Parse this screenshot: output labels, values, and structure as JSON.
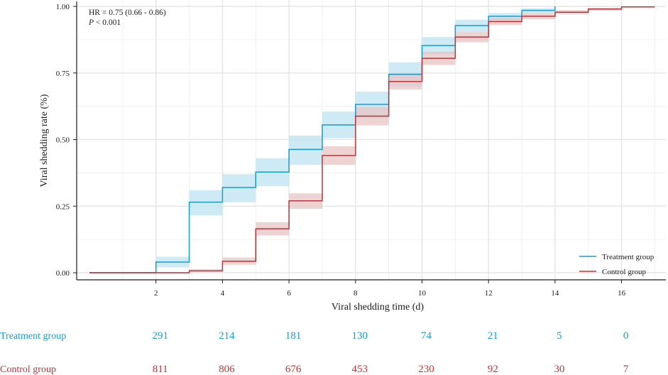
{
  "chart_data": {
    "type": "line",
    "subtype": "step-cumulative-incidence",
    "xlabel": "Viral shedding time (d)",
    "ylabel": "Viral shedding rate (%)",
    "xlim": [
      0,
      17
    ],
    "ylim": [
      0,
      1
    ],
    "x_ticks": [
      "2",
      "4",
      "6",
      "8",
      "10",
      "12",
      "14",
      "16"
    ],
    "y_ticks": [
      "0.00",
      "0.25",
      "0.50",
      "0.75",
      "1.00"
    ],
    "annotation_hr": "HR = 0.75  (0.66  -  0.86)",
    "annotation_p_label": "P",
    "annotation_p_value": " < 0.001",
    "legend_position": "bottom-right",
    "series": [
      {
        "name": "Treatment group",
        "color": "#1a9bc8",
        "band_color": "#bde3f0",
        "steps": [
          {
            "x": 0,
            "y": 0.0,
            "lo": 0.0,
            "hi": 0.0
          },
          {
            "x": 2,
            "y": 0.04,
            "lo": 0.02,
            "hi": 0.06
          },
          {
            "x": 3,
            "y": 0.265,
            "lo": 0.215,
            "hi": 0.31
          },
          {
            "x": 4,
            "y": 0.32,
            "lo": 0.265,
            "hi": 0.37
          },
          {
            "x": 5,
            "y": 0.378,
            "lo": 0.325,
            "hi": 0.43
          },
          {
            "x": 6,
            "y": 0.463,
            "lo": 0.405,
            "hi": 0.515
          },
          {
            "x": 7,
            "y": 0.555,
            "lo": 0.505,
            "hi": 0.605
          },
          {
            "x": 8,
            "y": 0.632,
            "lo": 0.58,
            "hi": 0.68
          },
          {
            "x": 9,
            "y": 0.745,
            "lo": 0.7,
            "hi": 0.79
          },
          {
            "x": 10,
            "y": 0.853,
            "lo": 0.82,
            "hi": 0.885
          },
          {
            "x": 11,
            "y": 0.928,
            "lo": 0.905,
            "hi": 0.95
          },
          {
            "x": 12,
            "y": 0.963,
            "lo": 0.945,
            "hi": 0.975
          },
          {
            "x": 13,
            "y": 0.985,
            "lo": 0.975,
            "hi": 0.993
          },
          {
            "x": 14,
            "y": 1.0,
            "lo": 1.0,
            "hi": 1.0
          }
        ],
        "end_x": 14
      },
      {
        "name": "Control group",
        "color": "#b5373a",
        "band_color": "#e8c4c4",
        "steps": [
          {
            "x": 0,
            "y": 0.0,
            "lo": 0.0,
            "hi": 0.0
          },
          {
            "x": 3,
            "y": 0.007,
            "lo": 0.002,
            "hi": 0.013
          },
          {
            "x": 4,
            "y": 0.043,
            "lo": 0.03,
            "hi": 0.057
          },
          {
            "x": 5,
            "y": 0.165,
            "lo": 0.14,
            "hi": 0.19
          },
          {
            "x": 6,
            "y": 0.27,
            "lo": 0.24,
            "hi": 0.298
          },
          {
            "x": 7,
            "y": 0.44,
            "lo": 0.405,
            "hi": 0.475
          },
          {
            "x": 8,
            "y": 0.588,
            "lo": 0.553,
            "hi": 0.622
          },
          {
            "x": 9,
            "y": 0.718,
            "lo": 0.688,
            "hi": 0.75
          },
          {
            "x": 10,
            "y": 0.805,
            "lo": 0.78,
            "hi": 0.83
          },
          {
            "x": 11,
            "y": 0.885,
            "lo": 0.865,
            "hi": 0.905
          },
          {
            "x": 12,
            "y": 0.943,
            "lo": 0.93,
            "hi": 0.957
          },
          {
            "x": 13,
            "y": 0.963,
            "lo": 0.952,
            "hi": 0.975
          },
          {
            "x": 14,
            "y": 0.978,
            "lo": 0.97,
            "hi": 0.986
          },
          {
            "x": 15,
            "y": 0.99,
            "lo": 0.985,
            "hi": 0.995
          },
          {
            "x": 16,
            "y": 0.998,
            "lo": 0.996,
            "hi": 1.0
          }
        ],
        "end_x": 17
      }
    ],
    "risk_table": {
      "time_points": [
        2,
        4,
        6,
        8,
        10,
        12,
        14,
        16
      ],
      "rows": [
        {
          "label": "Treatment group",
          "color": "#1a9bc8",
          "values": [
            "291",
            "214",
            "181",
            "130",
            "74",
            "21",
            "5",
            "0"
          ]
        },
        {
          "label": "Control group",
          "color": "#b5373a",
          "values": [
            "811",
            "806",
            "676",
            "453",
            "230",
            "92",
            "30",
            "7"
          ]
        }
      ]
    }
  }
}
